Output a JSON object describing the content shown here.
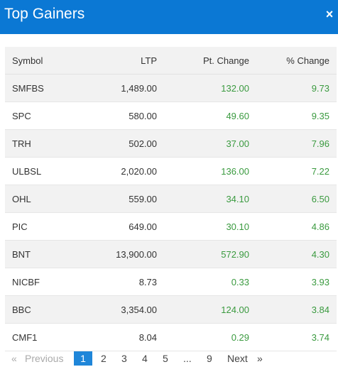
{
  "modal": {
    "title": "Top Gainers",
    "close_icon": "×"
  },
  "table": {
    "headers": {
      "symbol": "Symbol",
      "ltp": "LTP",
      "pt_change": "Pt. Change",
      "pct_change": "% Change"
    },
    "rows": [
      {
        "symbol": "SMFBS",
        "ltp": "1,489.00",
        "pt_change": "132.00",
        "pct_change": "9.73"
      },
      {
        "symbol": "SPC",
        "ltp": "580.00",
        "pt_change": "49.60",
        "pct_change": "9.35"
      },
      {
        "symbol": "TRH",
        "ltp": "502.00",
        "pt_change": "37.00",
        "pct_change": "7.96"
      },
      {
        "symbol": "ULBSL",
        "ltp": "2,020.00",
        "pt_change": "136.00",
        "pct_change": "7.22"
      },
      {
        "symbol": "OHL",
        "ltp": "559.00",
        "pt_change": "34.10",
        "pct_change": "6.50"
      },
      {
        "symbol": "PIC",
        "ltp": "649.00",
        "pt_change": "30.10",
        "pct_change": "4.86"
      },
      {
        "symbol": "BNT",
        "ltp": "13,900.00",
        "pt_change": "572.90",
        "pct_change": "4.30"
      },
      {
        "symbol": "NICBF",
        "ltp": "8.73",
        "pt_change": "0.33",
        "pct_change": "3.93"
      },
      {
        "symbol": "BBC",
        "ltp": "3,354.00",
        "pt_change": "124.00",
        "pct_change": "3.84"
      },
      {
        "symbol": "CMF1",
        "ltp": "8.04",
        "pt_change": "0.29",
        "pct_change": "3.74"
      }
    ]
  },
  "pagination": {
    "prev_arrow": "«",
    "previous": "Previous",
    "pages": [
      "1",
      "2",
      "3",
      "4",
      "5"
    ],
    "ellipsis": "...",
    "last_page": "9",
    "next": "Next",
    "next_arrow": "»",
    "current_page": "1"
  },
  "colors": {
    "header_bg": "#0b78d4",
    "positive": "#3a9a3f",
    "active_page": "#1f86d9"
  }
}
